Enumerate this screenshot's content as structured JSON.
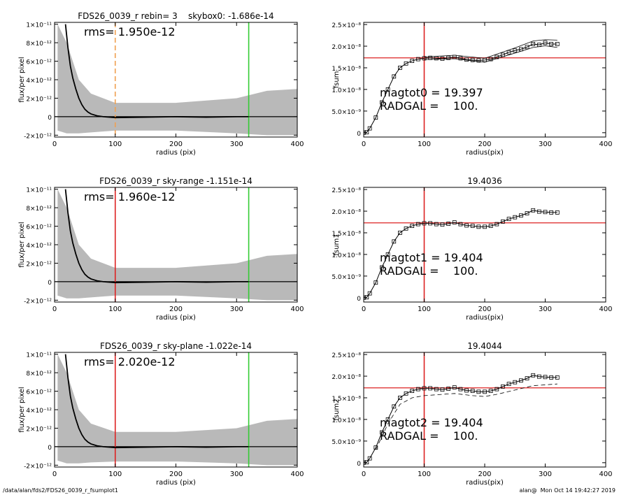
{
  "chart_data": [
    {
      "type": "profile",
      "title": "FDS26_0039_r rebin= 3    skybox0: -1.686e-14",
      "xlabel": "radius (pix)",
      "ylabel": "flux/per pixel",
      "annotations": [
        "rms= 1.950e-12"
      ],
      "xlim": [
        0,
        400
      ],
      "xticks": [
        0,
        100,
        200,
        300,
        400
      ],
      "ylim": [
        -2.2e-12,
        1.02e-11
      ],
      "yticks": [
        {
          "value": -2e-12,
          "label": "-2×10⁻¹²"
        },
        0,
        {
          "value": 2e-12,
          "label": "2×10⁻¹²"
        },
        {
          "value": 4e-12,
          "label": "4×10⁻¹²"
        },
        {
          "value": 6e-12,
          "label": "6×10⁻¹²"
        },
        {
          "value": 8e-12,
          "label": "8×10⁻¹²"
        },
        {
          "value": 1e-11,
          "label": "1×10⁻¹¹"
        }
      ],
      "band": {
        "color": "#a8a8a8",
        "x": [
          5,
          20,
          40,
          60,
          100,
          200,
          300,
          350,
          400
        ],
        "low": [
          -1.5e-12,
          -1.8e-12,
          -1.8e-12,
          -1.7e-12,
          -1.5e-12,
          -1.5e-12,
          -1.8e-12,
          -2e-12,
          -2e-12
        ],
        "high": [
          1e-11,
          8e-12,
          4e-12,
          2.5e-12,
          1.5e-12,
          1.5e-12,
          2e-12,
          2.8e-12,
          3e-12
        ]
      },
      "series": [
        {
          "color": "#000000",
          "style": "line",
          "x": [
            18,
            22,
            26,
            30,
            35,
            40,
            45,
            50,
            55,
            60,
            70,
            80,
            100,
            150,
            200,
            250,
            300,
            320
          ],
          "values": [
            1e-11,
            7.5e-12,
            5.5e-12,
            4.2e-12,
            3e-12,
            2e-12,
            1.3e-12,
            8e-13,
            5e-13,
            3e-13,
            1e-13,
            0,
            -1e-13,
            -5e-14,
            0,
            -5e-14,
            0,
            0
          ]
        }
      ],
      "hlines": [
        {
          "y": 0,
          "color": "#000000"
        }
      ],
      "vlines": [
        {
          "x": 100,
          "color": "#f0a050",
          "dash": true
        },
        {
          "x": 320,
          "color": "#33cc33",
          "dash": false
        }
      ]
    },
    {
      "type": "fsum",
      "ylabel": "fsum",
      "xlabel": "radius(pix)",
      "annotations": [
        "magtot0 = 19.397",
        "RADGAL =    100."
      ],
      "xlim": [
        0,
        400
      ],
      "xticks": [
        0,
        100,
        200,
        300,
        400
      ],
      "ylim": [
        -1e-09,
        2.55e-08
      ],
      "yticks": [
        0,
        {
          "value": 5e-09,
          "label": "5.0×10⁻⁹"
        },
        {
          "value": 1e-08,
          "label": "1.0×10⁻⁸"
        },
        {
          "value": 1.5e-08,
          "label": "1.5×10⁻⁸"
        },
        {
          "value": 2e-08,
          "label": "2.0×10⁻⁸"
        },
        {
          "value": 2.5e-08,
          "label": "2.5×10⁻⁸"
        }
      ],
      "series": [
        {
          "color": "#000000",
          "style": "squares",
          "x": [
            0,
            5,
            10,
            20,
            30,
            40,
            50,
            60,
            70,
            80,
            90,
            100,
            110,
            120,
            130,
            140,
            150,
            160,
            170,
            180,
            190,
            200,
            210,
            220,
            230,
            240,
            250,
            260,
            270,
            280,
            290,
            300,
            310,
            320
          ],
          "values": [
            0,
            1e-10,
            1e-09,
            3.5e-09,
            7e-09,
            1e-08,
            1.3e-08,
            1.5e-08,
            1.6e-08,
            1.66e-08,
            1.7e-08,
            1.72e-08,
            1.73e-08,
            1.72e-08,
            1.71e-08,
            1.73e-08,
            1.75e-08,
            1.72e-08,
            1.69e-08,
            1.68e-08,
            1.67e-08,
            1.68e-08,
            1.7e-08,
            1.75e-08,
            1.8e-08,
            1.86e-08,
            1.9e-08,
            1.93e-08,
            1.98e-08,
            2.05e-08,
            2.03e-08,
            2.08e-08,
            2.05e-08,
            2.05e-08
          ]
        },
        {
          "color": "#000000",
          "style": "thin",
          "x": [
            100,
            150,
            200,
            250,
            280,
            300,
            320
          ],
          "values": [
            1.75e-08,
            1.79e-08,
            1.72e-08,
            1.96e-08,
            2.12e-08,
            2.15e-08,
            2.14e-08
          ]
        },
        {
          "color": "#000000",
          "style": "thin",
          "x": [
            100,
            150,
            200,
            250,
            280,
            300,
            320
          ],
          "values": [
            1.69e-08,
            1.71e-08,
            1.63e-08,
            1.84e-08,
            1.97e-08,
            2.01e-08,
            1.97e-08
          ]
        }
      ],
      "hlines": [
        {
          "y": 1.73e-08,
          "color": "#dd2222"
        }
      ],
      "vlines": [
        {
          "x": 100,
          "color": "#dd2222",
          "dash": false
        }
      ]
    },
    {
      "type": "profile",
      "title": "FDS26_0039_r sky-range -1.151e-14",
      "xlabel": "radius (pix)",
      "ylabel": "flux/per pixel",
      "annotations": [
        "rms= 1.960e-12"
      ],
      "xlim": [
        0,
        400
      ],
      "xticks": [
        0,
        100,
        200,
        300,
        400
      ],
      "ylim": [
        -2.2e-12,
        1.02e-11
      ],
      "yticks": [
        {
          "value": -2e-12,
          "label": "-2×10⁻¹²"
        },
        0,
        {
          "value": 2e-12,
          "label": "2×10⁻¹²"
        },
        {
          "value": 4e-12,
          "label": "4×10⁻¹²"
        },
        {
          "value": 6e-12,
          "label": "6×10⁻¹²"
        },
        {
          "value": 8e-12,
          "label": "8×10⁻¹²"
        },
        {
          "value": 1e-11,
          "label": "1×10⁻¹¹"
        }
      ],
      "band": {
        "color": "#a8a8a8",
        "x": [
          5,
          20,
          40,
          60,
          100,
          200,
          300,
          350,
          400
        ],
        "low": [
          -1.5e-12,
          -1.8e-12,
          -1.8e-12,
          -1.7e-12,
          -1.5e-12,
          -1.5e-12,
          -1.8e-12,
          -2e-12,
          -2e-12
        ],
        "high": [
          1e-11,
          8e-12,
          4e-12,
          2.5e-12,
          1.5e-12,
          1.5e-12,
          2e-12,
          2.8e-12,
          3e-12
        ]
      },
      "series": [
        {
          "color": "#000000",
          "style": "line",
          "x": [
            18,
            22,
            26,
            30,
            35,
            40,
            45,
            50,
            55,
            60,
            70,
            80,
            100,
            150,
            200,
            250,
            300,
            320
          ],
          "values": [
            1e-11,
            7.5e-12,
            5.5e-12,
            4.2e-12,
            3e-12,
            2e-12,
            1.3e-12,
            8e-13,
            5e-13,
            3e-13,
            1e-13,
            0,
            -1e-13,
            -5e-14,
            0,
            -5e-14,
            0,
            0
          ]
        }
      ],
      "hlines": [
        {
          "y": 0,
          "color": "#000000"
        }
      ],
      "vlines": [
        {
          "x": 100,
          "color": "#dd2222",
          "dash": false
        },
        {
          "x": 320,
          "color": "#33cc33",
          "dash": false
        }
      ]
    },
    {
      "type": "fsum",
      "title": "19.4036",
      "ylabel": "fsum1",
      "xlabel": "radius(pix)",
      "annotations": [
        "magtot1 = 19.404",
        "RADGAL =    100."
      ],
      "xlim": [
        0,
        400
      ],
      "xticks": [
        0,
        100,
        200,
        300,
        400
      ],
      "ylim": [
        -1e-09,
        2.55e-08
      ],
      "yticks": [
        0,
        {
          "value": 5e-09,
          "label": "5.0×10⁻⁹"
        },
        {
          "value": 1e-08,
          "label": "1.0×10⁻⁸"
        },
        {
          "value": 1.5e-08,
          "label": "1.5×10⁻⁸"
        },
        {
          "value": 2e-08,
          "label": "2.0×10⁻⁸"
        },
        {
          "value": 2.5e-08,
          "label": "2.5×10⁻⁸"
        }
      ],
      "series": [
        {
          "color": "#000000",
          "style": "squares",
          "x": [
            0,
            5,
            10,
            20,
            30,
            40,
            50,
            60,
            70,
            80,
            90,
            100,
            110,
            120,
            130,
            140,
            150,
            160,
            170,
            180,
            190,
            200,
            210,
            220,
            230,
            240,
            250,
            260,
            270,
            280,
            290,
            300,
            310,
            320
          ],
          "values": [
            0,
            1e-10,
            1e-09,
            3.5e-09,
            7e-09,
            1e-08,
            1.3e-08,
            1.5e-08,
            1.6e-08,
            1.66e-08,
            1.7e-08,
            1.72e-08,
            1.72e-08,
            1.7e-08,
            1.69e-08,
            1.71e-08,
            1.74e-08,
            1.7e-08,
            1.67e-08,
            1.66e-08,
            1.64e-08,
            1.64e-08,
            1.66e-08,
            1.7e-08,
            1.76e-08,
            1.82e-08,
            1.86e-08,
            1.9e-08,
            1.95e-08,
            2.02e-08,
            1.99e-08,
            1.98e-08,
            1.97e-08,
            1.97e-08
          ]
        }
      ],
      "hlines": [
        {
          "y": 1.73e-08,
          "color": "#dd2222"
        }
      ],
      "vlines": [
        {
          "x": 100,
          "color": "#dd2222",
          "dash": false
        }
      ]
    },
    {
      "type": "profile",
      "title": "FDS26_0039_r sky-plane -1.022e-14",
      "xlabel": "radius (pix)",
      "ylabel": "flux/per pixel",
      "annotations": [
        "rms= 2.020e-12"
      ],
      "xlim": [
        0,
        400
      ],
      "xticks": [
        0,
        100,
        200,
        300,
        400
      ],
      "ylim": [
        -2.2e-12,
        1.02e-11
      ],
      "yticks": [
        {
          "value": -2e-12,
          "label": "-2×10⁻¹²"
        },
        0,
        {
          "value": 2e-12,
          "label": "2×10⁻¹²"
        },
        {
          "value": 4e-12,
          "label": "4×10⁻¹²"
        },
        {
          "value": 6e-12,
          "label": "6×10⁻¹²"
        },
        {
          "value": 8e-12,
          "label": "8×10⁻¹²"
        },
        {
          "value": 1e-11,
          "label": "1×10⁻¹¹"
        }
      ],
      "band": {
        "color": "#a8a8a8",
        "x": [
          5,
          20,
          40,
          60,
          100,
          200,
          300,
          350,
          400
        ],
        "low": [
          -1.5e-12,
          -1.8e-12,
          -1.8e-12,
          -1.7e-12,
          -1.6e-12,
          -1.6e-12,
          -1.8e-12,
          -2e-12,
          -2e-12
        ],
        "high": [
          1e-11,
          8e-12,
          4e-12,
          2.5e-12,
          1.6e-12,
          1.6e-12,
          2e-12,
          2.8e-12,
          3e-12
        ]
      },
      "series": [
        {
          "color": "#000000",
          "style": "line",
          "x": [
            18,
            22,
            26,
            30,
            35,
            40,
            45,
            50,
            55,
            60,
            70,
            80,
            100,
            150,
            200,
            250,
            300,
            320
          ],
          "values": [
            1e-11,
            7.5e-12,
            5.5e-12,
            4.2e-12,
            3e-12,
            2e-12,
            1.3e-12,
            8e-13,
            5e-13,
            3e-13,
            1e-13,
            0,
            -1e-13,
            -5e-14,
            0,
            -5e-14,
            0,
            0
          ]
        }
      ],
      "hlines": [
        {
          "y": 0,
          "color": "#000000"
        }
      ],
      "vlines": [
        {
          "x": 100,
          "color": "#dd2222",
          "dash": false
        },
        {
          "x": 320,
          "color": "#33cc33",
          "dash": false
        }
      ]
    },
    {
      "type": "fsum",
      "title": "19.4044",
      "ylabel": "fsum2",
      "xlabel": "radius(pix)",
      "annotations": [
        "magtot2 = 19.404",
        "RADGAL =    100."
      ],
      "xlim": [
        0,
        400
      ],
      "xticks": [
        0,
        100,
        200,
        300,
        400
      ],
      "ylim": [
        -1e-09,
        2.55e-08
      ],
      "yticks": [
        0,
        {
          "value": 5e-09,
          "label": "5.0×10⁻⁹"
        },
        {
          "value": 1e-08,
          "label": "1.0×10⁻⁸"
        },
        {
          "value": 1.5e-08,
          "label": "1.5×10⁻⁸"
        },
        {
          "value": 2e-08,
          "label": "2.0×10⁻⁸"
        },
        {
          "value": 2.5e-08,
          "label": "2.5×10⁻⁸"
        }
      ],
      "series": [
        {
          "color": "#000000",
          "style": "squares",
          "x": [
            0,
            5,
            10,
            20,
            30,
            40,
            50,
            60,
            70,
            80,
            90,
            100,
            110,
            120,
            130,
            140,
            150,
            160,
            170,
            180,
            190,
            200,
            210,
            220,
            230,
            240,
            250,
            260,
            270,
            280,
            290,
            300,
            310,
            320
          ],
          "values": [
            0,
            1e-10,
            1e-09,
            3.5e-09,
            7e-09,
            1e-08,
            1.3e-08,
            1.5e-08,
            1.6e-08,
            1.66e-08,
            1.7e-08,
            1.72e-08,
            1.72e-08,
            1.7e-08,
            1.69e-08,
            1.71e-08,
            1.74e-08,
            1.7e-08,
            1.67e-08,
            1.66e-08,
            1.64e-08,
            1.64e-08,
            1.66e-08,
            1.7e-08,
            1.76e-08,
            1.82e-08,
            1.86e-08,
            1.9e-08,
            1.95e-08,
            2.02e-08,
            1.99e-08,
            1.98e-08,
            1.97e-08,
            1.97e-08
          ]
        },
        {
          "color": "#000000",
          "style": "dashed",
          "x": [
            20,
            40,
            60,
            80,
            100,
            120,
            150,
            180,
            200,
            220,
            250,
            280,
            300,
            320
          ],
          "values": [
            3e-09,
            9e-09,
            1.35e-08,
            1.5e-08,
            1.55e-08,
            1.57e-08,
            1.6e-08,
            1.55e-08,
            1.53e-08,
            1.58e-08,
            1.68e-08,
            1.78e-08,
            1.8e-08,
            1.82e-08
          ]
        }
      ],
      "hlines": [
        {
          "y": 1.73e-08,
          "color": "#dd2222"
        }
      ],
      "vlines": [
        {
          "x": 100,
          "color": "#dd2222",
          "dash": false
        }
      ]
    }
  ],
  "footer": {
    "left": "/data/alan/fds2/FDS26_0039_r_fsumplot1",
    "right": "alan@  Mon Oct 14 19:42:27 2019"
  }
}
